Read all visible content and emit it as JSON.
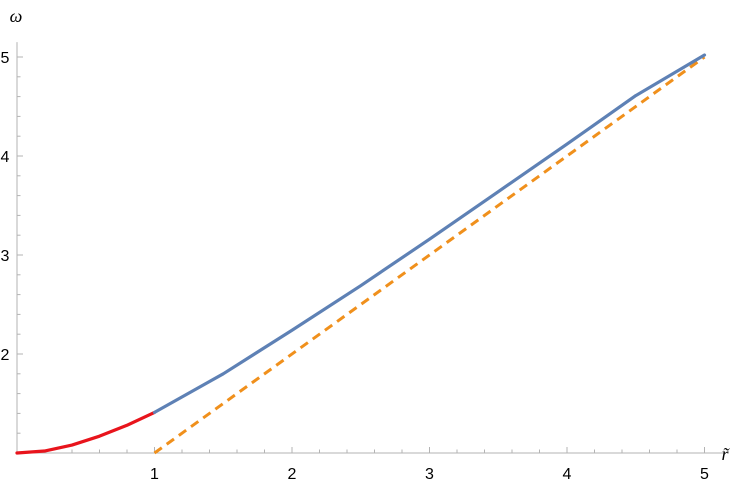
{
  "chart_data": {
    "type": "line",
    "title": "",
    "xlabel": "r̃",
    "ylabel": "ω",
    "xlim": [
      0,
      5.1
    ],
    "ylim": [
      1,
      5.1
    ],
    "x_ticks": [
      "1",
      "2",
      "3",
      "4",
      "5"
    ],
    "y_ticks": [
      "2",
      "3",
      "4",
      "5"
    ],
    "grid": false,
    "series": [
      {
        "color": "#e8141c",
        "style": "solid",
        "x": [
          0,
          0.2,
          0.4,
          0.6,
          0.8,
          1.0
        ],
        "y": [
          1.0,
          1.02,
          1.08,
          1.17,
          1.28,
          1.41
        ]
      },
      {
        "color": "#5e81b5",
        "style": "solid",
        "x": [
          1.0,
          1.5,
          2.0,
          2.5,
          3.0,
          3.5,
          4.0,
          4.5,
          5.0
        ],
        "y": [
          1.41,
          1.8,
          2.24,
          2.69,
          3.16,
          3.64,
          4.12,
          4.61,
          5.02
        ]
      },
      {
        "color": "#f0901c",
        "style": "dashed",
        "x": [
          1.0,
          5.0
        ],
        "y": [
          1.0,
          5.0
        ]
      }
    ]
  }
}
